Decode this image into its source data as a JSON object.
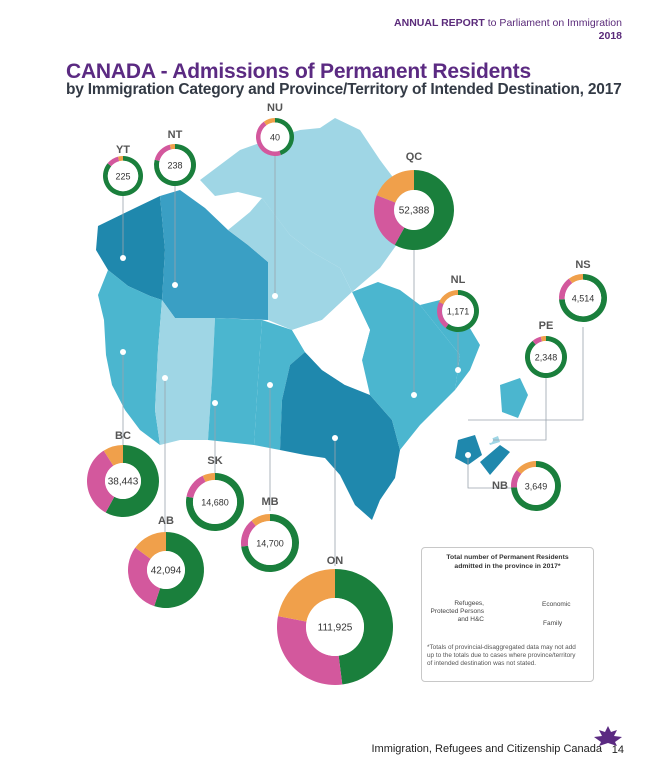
{
  "header": {
    "report_label": "ANNUAL REPORT",
    "report_rest": " to Parliament on Immigration",
    "year": "2018"
  },
  "title": "CANADA - Admissions of Permanent Residents",
  "subtitle": "by Immigration Category and Province/Territory of Intended Destination, 2017",
  "footer": {
    "agency": "Immigration, Refugees and Citizenship Canada",
    "page": "14"
  },
  "colors": {
    "economic": "#1a7f3c",
    "family": "#d3589d",
    "refugees": "#f0a04b",
    "map_dark": "#1f88ad",
    "map_mid": "#4bb6cf",
    "map_light": "#9fd6e5"
  },
  "legend": {
    "title_line1": "Total number of Permanent Residents",
    "title_line2": "admitted in the province in 2017*",
    "economic": "Economic",
    "family": "Family",
    "refugees_line1": "Refugees,",
    "refugees_line2": "Protected Persons",
    "refugees_line3": "and H&C",
    "note_line1": "*Totals of provincial-disaggregated data may not add",
    "note_line2": "up to the totals due to cases where province/territory",
    "note_line3": "of intended destination was not stated."
  },
  "chart_data": {
    "type": "pie",
    "categories": [
      "Economic",
      "Family",
      "Refugees, Protected Persons and H&C"
    ],
    "series": [
      {
        "name": "YT",
        "total": "225",
        "values": [
          0.86,
          0.1,
          0.04
        ]
      },
      {
        "name": "NT",
        "total": "238",
        "values": [
          0.79,
          0.17,
          0.04
        ]
      },
      {
        "name": "NU",
        "total": "40",
        "values": [
          0.45,
          0.45,
          0.1
        ]
      },
      {
        "name": "QC",
        "total": "52,388",
        "values": [
          0.58,
          0.23,
          0.19
        ]
      },
      {
        "name": "NL",
        "total": "1,171",
        "values": [
          0.6,
          0.22,
          0.18
        ]
      },
      {
        "name": "NS",
        "total": "4,514",
        "values": [
          0.74,
          0.16,
          0.1
        ]
      },
      {
        "name": "PE",
        "total": "2,348",
        "values": [
          0.89,
          0.07,
          0.04
        ]
      },
      {
        "name": "NB",
        "total": "3,649",
        "values": [
          0.74,
          0.12,
          0.14
        ]
      },
      {
        "name": "BC",
        "total": "38,443",
        "values": [
          0.58,
          0.33,
          0.09
        ]
      },
      {
        "name": "SK",
        "total": "14,680",
        "values": [
          0.78,
          0.15,
          0.07
        ]
      },
      {
        "name": "MB",
        "total": "14,700",
        "values": [
          0.73,
          0.16,
          0.11
        ]
      },
      {
        "name": "AB",
        "total": "42,094",
        "values": [
          0.55,
          0.3,
          0.15
        ]
      },
      {
        "name": "ON",
        "total": "111,925",
        "values": [
          0.48,
          0.3,
          0.22
        ]
      }
    ]
  }
}
